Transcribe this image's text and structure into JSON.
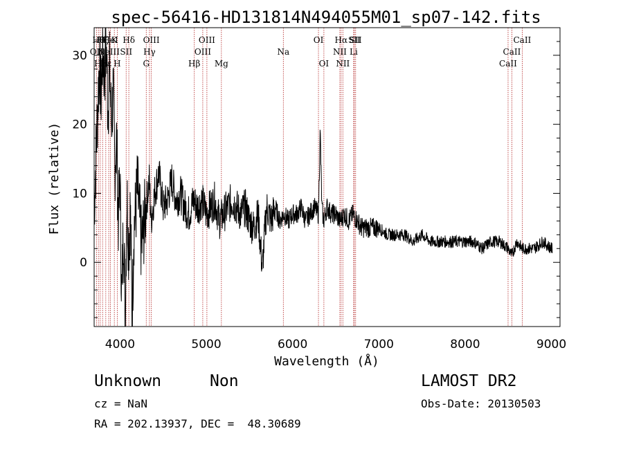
{
  "chart_data": {
    "type": "line",
    "title": "spec-56416-HD131814N494055M01_sp07-142.fits",
    "xlabel": "Wavelength (Å)",
    "ylabel": "Flux (relative)",
    "xlim": [
      3700,
      9100
    ],
    "ylim": [
      -9.3,
      34
    ],
    "xticks": [
      4000,
      5000,
      6000,
      7000,
      8000,
      9000
    ],
    "yticks": [
      0,
      10,
      20,
      30
    ],
    "grid": false,
    "line_color": "#000000",
    "marker_line_color": "#b22222",
    "series": [
      {
        "values_desc": "",
        "x": [
          3700,
          3740,
          3760,
          3780,
          3800,
          3820,
          3840,
          3860,
          3880,
          3900,
          3920,
          3940,
          3960,
          3980,
          4000,
          4020,
          4040,
          4060,
          4080,
          4100,
          4120,
          4140,
          4160,
          4180,
          4200,
          4250,
          4300,
          4340,
          4360,
          4400,
          4450,
          4500,
          4550,
          4600,
          4650,
          4700,
          4750,
          4800,
          4850,
          4900,
          4950,
          5000,
          5050,
          5100,
          5150,
          5200,
          5250,
          5300,
          5350,
          5400,
          5450,
          5500,
          5550,
          5600,
          5650,
          5670,
          5700,
          5750,
          5800,
          5850,
          5900,
          5950,
          6000,
          6050,
          6100,
          6150,
          6200,
          6250,
          6300,
          6320,
          6340,
          6360,
          6400,
          6450,
          6500,
          6550,
          6600,
          6650,
          6700,
          6750,
          6800,
          6900,
          7000,
          7100,
          7200,
          7300,
          7400,
          7500,
          7600,
          7700,
          7800,
          7900,
          8000,
          8100,
          8200,
          8300,
          8400,
          8500,
          8540,
          8600,
          8660,
          8700,
          8800,
          8900,
          9000
        ],
        "y": [
          8,
          22,
          29,
          24,
          31,
          27,
          32,
          22,
          28,
          20,
          25,
          14,
          18,
          6,
          12,
          -6,
          6,
          -7,
          10,
          2,
          8,
          -9,
          5,
          7,
          11,
          2,
          8,
          12,
          6,
          10,
          13,
          8,
          9,
          12,
          9,
          10,
          8,
          7,
          9,
          8,
          9,
          7,
          8,
          9,
          6,
          7,
          8,
          9,
          8,
          7,
          8,
          6,
          5,
          7,
          -1,
          3,
          8,
          6,
          8,
          6,
          7,
          6,
          7,
          7,
          8,
          6,
          7,
          8,
          7,
          19,
          8,
          6,
          8,
          7,
          7,
          6,
          7,
          6,
          7,
          6,
          5,
          5,
          5,
          4,
          4,
          4,
          3,
          4,
          3,
          3,
          3,
          3,
          3,
          3,
          2,
          3,
          3,
          2,
          1,
          3,
          2,
          2,
          2,
          3,
          2
        ]
      }
    ],
    "line_markers": [
      {
        "wl": 3727,
        "label": "OII",
        "row": 1
      },
      {
        "wl": 3750,
        "label": "Hθ",
        "row": 0
      },
      {
        "wl": 3771,
        "label": "Hη",
        "row": 2
      },
      {
        "wl": 3798,
        "label": "Hζ",
        "row": 0
      },
      {
        "wl": 3835,
        "label": "Hε",
        "row": 2
      },
      {
        "wl": 3869,
        "label": "NeIII",
        "row": 1
      },
      {
        "wl": 3889,
        "label": "HeI",
        "row": 0
      },
      {
        "wl": 3934,
        "label": "K",
        "row": 0
      },
      {
        "wl": 3968,
        "label": "H",
        "row": 2
      },
      {
        "wl": 4071,
        "label": "SII",
        "row": 1
      },
      {
        "wl": 4102,
        "label": "Hδ",
        "row": 0
      },
      {
        "wl": 4304,
        "label": "G",
        "row": 2
      },
      {
        "wl": 4341,
        "label": "Hγ",
        "row": 1
      },
      {
        "wl": 4363,
        "label": "OIII",
        "row": 0
      },
      {
        "wl": 4861,
        "label": "Hβ",
        "row": 2
      },
      {
        "wl": 4959,
        "label": "OIII",
        "row": 1
      },
      {
        "wl": 5007,
        "label": "OIII",
        "row": 0
      },
      {
        "wl": 5175,
        "label": "Mg",
        "row": 2
      },
      {
        "wl": 5893,
        "label": "Na",
        "row": 1
      },
      {
        "wl": 6300,
        "label": "OI",
        "row": 0
      },
      {
        "wl": 6363,
        "label": "OI",
        "row": 2
      },
      {
        "wl": 6548,
        "label": "NII",
        "row": 1
      },
      {
        "wl": 6563,
        "label": "Hα",
        "row": 0
      },
      {
        "wl": 6583,
        "label": "NII",
        "row": 2
      },
      {
        "wl": 6708,
        "label": "Li",
        "row": 1
      },
      {
        "wl": 6716,
        "label": "SII",
        "row": 0
      },
      {
        "wl": 6731,
        "label": "SII",
        "row": 0
      },
      {
        "wl": 8498,
        "label": "CaII",
        "row": 2
      },
      {
        "wl": 8542,
        "label": "CaII",
        "row": 1
      },
      {
        "wl": 8662,
        "label": "CaII",
        "row": 0
      }
    ]
  },
  "info": {
    "object_class": "Unknown",
    "subclass": "Non",
    "survey": "LAMOST DR2",
    "redshift": "cz = NaN",
    "obs_date": "Obs-Date: 20130503",
    "coords": "RA = 202.13937, DEC =  48.30689"
  }
}
